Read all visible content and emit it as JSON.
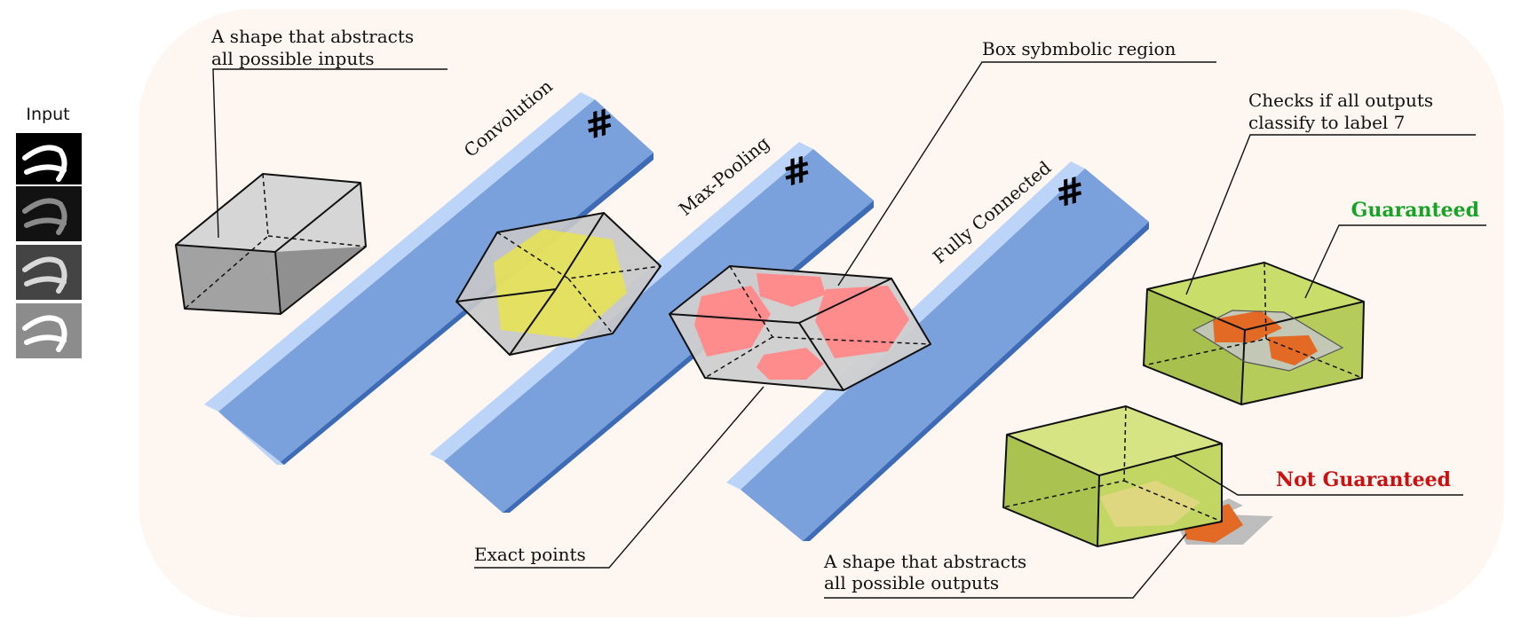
{
  "diagram": {
    "input_label": "Input",
    "layers": [
      {
        "label": "Convolution",
        "symbol": "#"
      },
      {
        "label": "Max-Pooling",
        "symbol": "#"
      },
      {
        "label": "Fully Connected",
        "symbol": "#"
      }
    ],
    "annotations": {
      "input_shape": [
        "A shape that abstracts",
        "all possible inputs"
      ],
      "box_region": "Box sybmbolic region",
      "checks": [
        "Checks if all outputs",
        "classify to label 7"
      ],
      "exact_points": "Exact points",
      "output_shape": [
        "A shape that abstracts",
        "all possible outputs"
      ]
    },
    "verdicts": {
      "guaranteed": "Guaranteed",
      "not_guaranteed": "Not Guaranteed"
    },
    "colors": {
      "panel_background": "#fdf6f1",
      "layer_blue": "#7aa1dc",
      "layer_light": "#bcd4f7",
      "layer_dark": "#3d6bb5",
      "input_shape_fill": "#b9b9b9",
      "zonotope_fill": "#e6e34f",
      "exact_points_fill": "#ff8c8c",
      "output_box_fill": "#c8dd6a",
      "output_region_fill": "#e26a25",
      "guaranteed": "#17a325",
      "not_guaranteed": "#cc0f0f"
    }
  }
}
